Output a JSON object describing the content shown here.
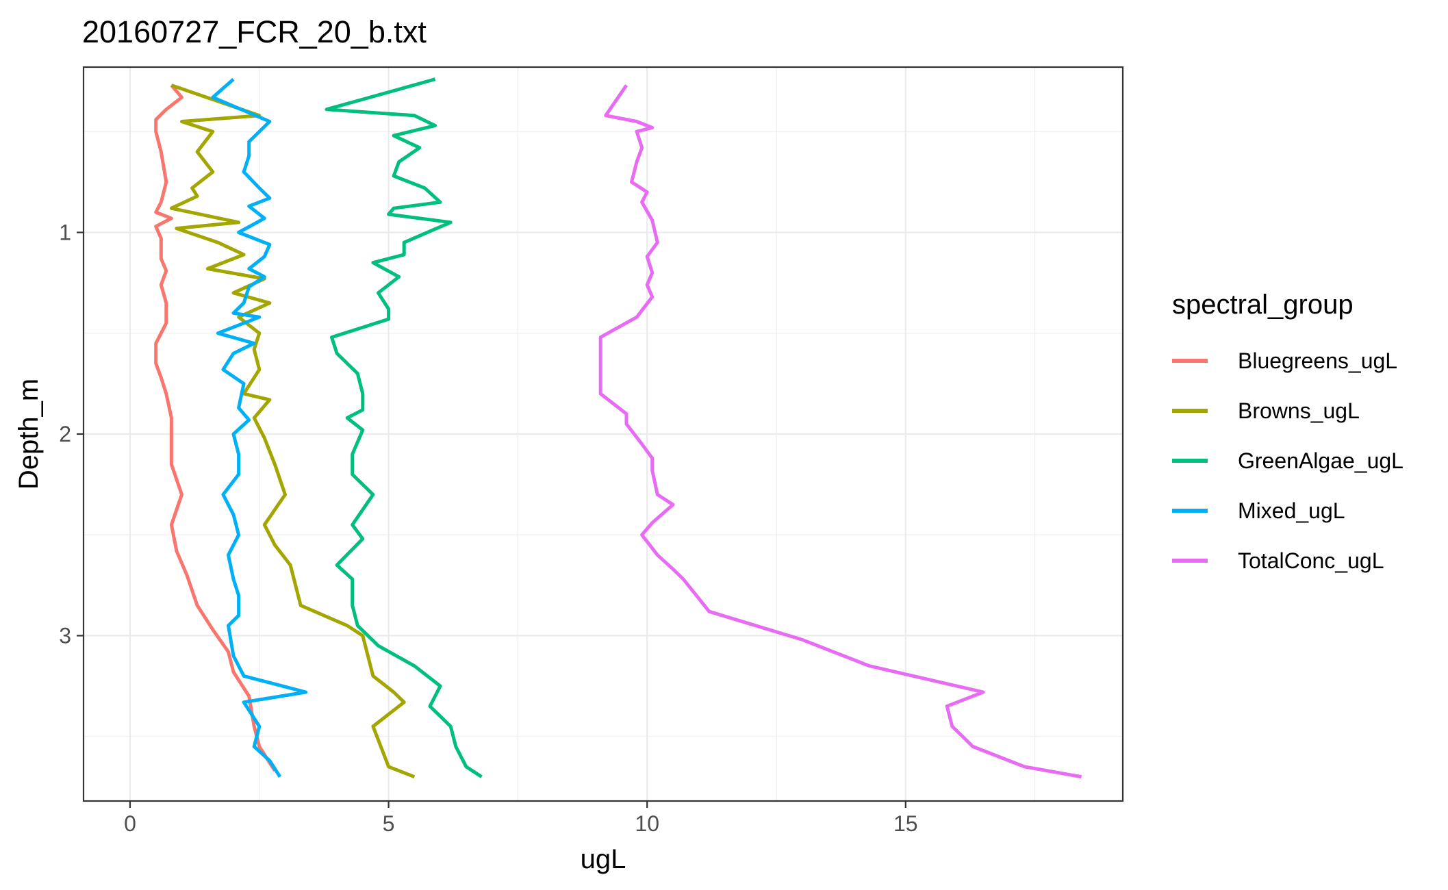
{
  "chart_data": {
    "type": "line",
    "title": "20160727_FCR_20_b.txt",
    "xlabel": "ugL",
    "ylabel": "Depth_m",
    "xlim": [
      -0.9,
      19.2
    ],
    "ylim": [
      3.82,
      0.18
    ],
    "y_reversed": true,
    "x_ticks": [
      0,
      5,
      10,
      15
    ],
    "x_tick_labels": [
      "0",
      "5",
      "10",
      "15"
    ],
    "y_ticks": [
      1,
      2,
      3
    ],
    "y_tick_labels": [
      "1",
      "2",
      "3"
    ],
    "grid": true,
    "legend": {
      "title": "spectral_group",
      "placement": "right"
    },
    "series": [
      {
        "name": "Bluegreens_ugL",
        "color": "#F8766D",
        "points": [
          [
            0.8,
            0.27
          ],
          [
            1.0,
            0.33
          ],
          [
            0.7,
            0.39
          ],
          [
            0.5,
            0.44
          ],
          [
            0.5,
            0.5
          ],
          [
            0.6,
            0.6
          ],
          [
            0.7,
            0.75
          ],
          [
            0.6,
            0.85
          ],
          [
            0.5,
            0.9
          ],
          [
            0.8,
            0.93
          ],
          [
            0.5,
            0.97
          ],
          [
            0.6,
            1.03
          ],
          [
            0.6,
            1.13
          ],
          [
            0.7,
            1.19
          ],
          [
            0.6,
            1.26
          ],
          [
            0.7,
            1.35
          ],
          [
            0.7,
            1.45
          ],
          [
            0.5,
            1.55
          ],
          [
            0.5,
            1.65
          ],
          [
            0.6,
            1.72
          ],
          [
            0.7,
            1.8
          ],
          [
            0.8,
            1.92
          ],
          [
            0.8,
            2.04
          ],
          [
            0.8,
            2.15
          ],
          [
            1.0,
            2.3
          ],
          [
            0.8,
            2.45
          ],
          [
            0.9,
            2.58
          ],
          [
            1.1,
            2.7
          ],
          [
            1.3,
            2.85
          ],
          [
            1.6,
            2.97
          ],
          [
            1.9,
            3.08
          ],
          [
            2.0,
            3.18
          ],
          [
            2.3,
            3.3
          ],
          [
            2.4,
            3.45
          ],
          [
            2.5,
            3.55
          ],
          [
            2.8,
            3.67
          ]
        ]
      },
      {
        "name": "Browns_ugL",
        "color": "#A3A500",
        "points": [
          [
            0.8,
            0.27
          ],
          [
            2.5,
            0.42
          ],
          [
            1.0,
            0.45
          ],
          [
            1.6,
            0.5
          ],
          [
            1.3,
            0.6
          ],
          [
            1.6,
            0.7
          ],
          [
            1.2,
            0.78
          ],
          [
            1.3,
            0.82
          ],
          [
            0.8,
            0.88
          ],
          [
            2.1,
            0.95
          ],
          [
            0.9,
            0.98
          ],
          [
            1.7,
            1.05
          ],
          [
            2.2,
            1.11
          ],
          [
            1.5,
            1.18
          ],
          [
            2.6,
            1.23
          ],
          [
            2.0,
            1.3
          ],
          [
            2.7,
            1.35
          ],
          [
            2.1,
            1.42
          ],
          [
            2.5,
            1.5
          ],
          [
            2.4,
            1.58
          ],
          [
            2.5,
            1.68
          ],
          [
            2.2,
            1.8
          ],
          [
            2.7,
            1.83
          ],
          [
            2.4,
            1.92
          ],
          [
            2.6,
            2.02
          ],
          [
            2.8,
            2.15
          ],
          [
            3.0,
            2.3
          ],
          [
            2.6,
            2.45
          ],
          [
            2.8,
            2.55
          ],
          [
            3.1,
            2.65
          ],
          [
            3.3,
            2.85
          ],
          [
            4.2,
            2.95
          ],
          [
            4.5,
            3.0
          ],
          [
            4.6,
            3.1
          ],
          [
            4.7,
            3.2
          ],
          [
            5.1,
            3.28
          ],
          [
            5.3,
            3.33
          ],
          [
            4.7,
            3.45
          ],
          [
            5.0,
            3.65
          ],
          [
            5.5,
            3.7
          ]
        ]
      },
      {
        "name": "GreenAlgae_ugL",
        "color": "#00BF7D",
        "points": [
          [
            5.9,
            0.24
          ],
          [
            3.8,
            0.39
          ],
          [
            5.5,
            0.42
          ],
          [
            5.9,
            0.47
          ],
          [
            5.1,
            0.52
          ],
          [
            5.6,
            0.58
          ],
          [
            5.2,
            0.65
          ],
          [
            5.1,
            0.72
          ],
          [
            5.7,
            0.78
          ],
          [
            6.0,
            0.85
          ],
          [
            5.1,
            0.88
          ],
          [
            5.0,
            0.91
          ],
          [
            6.2,
            0.95
          ],
          [
            5.3,
            1.05
          ],
          [
            5.3,
            1.11
          ],
          [
            4.7,
            1.15
          ],
          [
            5.2,
            1.22
          ],
          [
            4.8,
            1.3
          ],
          [
            5.0,
            1.38
          ],
          [
            5.0,
            1.43
          ],
          [
            3.9,
            1.52
          ],
          [
            4.0,
            1.6
          ],
          [
            4.4,
            1.7
          ],
          [
            4.5,
            1.8
          ],
          [
            4.5,
            1.88
          ],
          [
            4.2,
            1.92
          ],
          [
            4.5,
            1.98
          ],
          [
            4.3,
            2.1
          ],
          [
            4.3,
            2.2
          ],
          [
            4.7,
            2.3
          ],
          [
            4.3,
            2.45
          ],
          [
            4.5,
            2.52
          ],
          [
            4.0,
            2.65
          ],
          [
            4.3,
            2.72
          ],
          [
            4.3,
            2.85
          ],
          [
            4.4,
            2.95
          ],
          [
            4.8,
            3.05
          ],
          [
            5.5,
            3.15
          ],
          [
            6.0,
            3.25
          ],
          [
            5.8,
            3.35
          ],
          [
            6.2,
            3.45
          ],
          [
            6.3,
            3.55
          ],
          [
            6.5,
            3.65
          ],
          [
            6.8,
            3.7
          ]
        ]
      },
      {
        "name": "Mixed_ugL",
        "color": "#00B0F6",
        "points": [
          [
            2.0,
            0.24
          ],
          [
            1.6,
            0.33
          ],
          [
            2.7,
            0.45
          ],
          [
            2.3,
            0.55
          ],
          [
            2.3,
            0.62
          ],
          [
            2.2,
            0.7
          ],
          [
            2.5,
            0.78
          ],
          [
            2.7,
            0.83
          ],
          [
            2.3,
            0.87
          ],
          [
            2.6,
            0.93
          ],
          [
            2.1,
            1.0
          ],
          [
            2.7,
            1.06
          ],
          [
            2.6,
            1.12
          ],
          [
            2.3,
            1.18
          ],
          [
            2.6,
            1.22
          ],
          [
            2.3,
            1.27
          ],
          [
            2.2,
            1.35
          ],
          [
            2.0,
            1.4
          ],
          [
            2.5,
            1.42
          ],
          [
            1.7,
            1.5
          ],
          [
            2.4,
            1.55
          ],
          [
            2.0,
            1.6
          ],
          [
            1.8,
            1.68
          ],
          [
            2.2,
            1.75
          ],
          [
            2.1,
            1.87
          ],
          [
            2.3,
            1.93
          ],
          [
            2.0,
            2.0
          ],
          [
            2.1,
            2.1
          ],
          [
            2.1,
            2.2
          ],
          [
            1.8,
            2.3
          ],
          [
            2.0,
            2.4
          ],
          [
            2.1,
            2.5
          ],
          [
            1.9,
            2.6
          ],
          [
            2.0,
            2.72
          ],
          [
            2.1,
            2.8
          ],
          [
            2.1,
            2.9
          ],
          [
            1.9,
            2.95
          ],
          [
            2.0,
            3.1
          ],
          [
            2.2,
            3.2
          ],
          [
            3.4,
            3.28
          ],
          [
            2.2,
            3.33
          ],
          [
            2.5,
            3.45
          ],
          [
            2.4,
            3.55
          ],
          [
            2.7,
            3.62
          ],
          [
            2.9,
            3.7
          ]
        ]
      },
      {
        "name": "TotalConc_ugL",
        "color": "#E76BF3",
        "points": [
          [
            9.6,
            0.27
          ],
          [
            9.2,
            0.42
          ],
          [
            9.8,
            0.45
          ],
          [
            10.1,
            0.48
          ],
          [
            9.8,
            0.5
          ],
          [
            9.9,
            0.58
          ],
          [
            9.8,
            0.65
          ],
          [
            9.7,
            0.75
          ],
          [
            10.0,
            0.8
          ],
          [
            9.9,
            0.85
          ],
          [
            10.1,
            0.94
          ],
          [
            10.2,
            1.05
          ],
          [
            10.0,
            1.12
          ],
          [
            10.1,
            1.2
          ],
          [
            10.0,
            1.26
          ],
          [
            10.1,
            1.32
          ],
          [
            9.8,
            1.42
          ],
          [
            9.1,
            1.52
          ],
          [
            9.1,
            1.6
          ],
          [
            9.1,
            1.7
          ],
          [
            9.1,
            1.8
          ],
          [
            9.6,
            1.9
          ],
          [
            9.6,
            1.95
          ],
          [
            9.9,
            2.05
          ],
          [
            10.1,
            2.12
          ],
          [
            10.1,
            2.18
          ],
          [
            10.2,
            2.3
          ],
          [
            10.5,
            2.35
          ],
          [
            10.1,
            2.44
          ],
          [
            9.9,
            2.5
          ],
          [
            10.2,
            2.6
          ],
          [
            10.5,
            2.67
          ],
          [
            10.7,
            2.72
          ],
          [
            11.2,
            2.88
          ],
          [
            13.0,
            3.02
          ],
          [
            14.3,
            3.15
          ],
          [
            16.5,
            3.28
          ],
          [
            15.8,
            3.35
          ],
          [
            15.9,
            3.45
          ],
          [
            16.3,
            3.55
          ],
          [
            17.3,
            3.65
          ],
          [
            18.4,
            3.7
          ]
        ]
      }
    ]
  }
}
